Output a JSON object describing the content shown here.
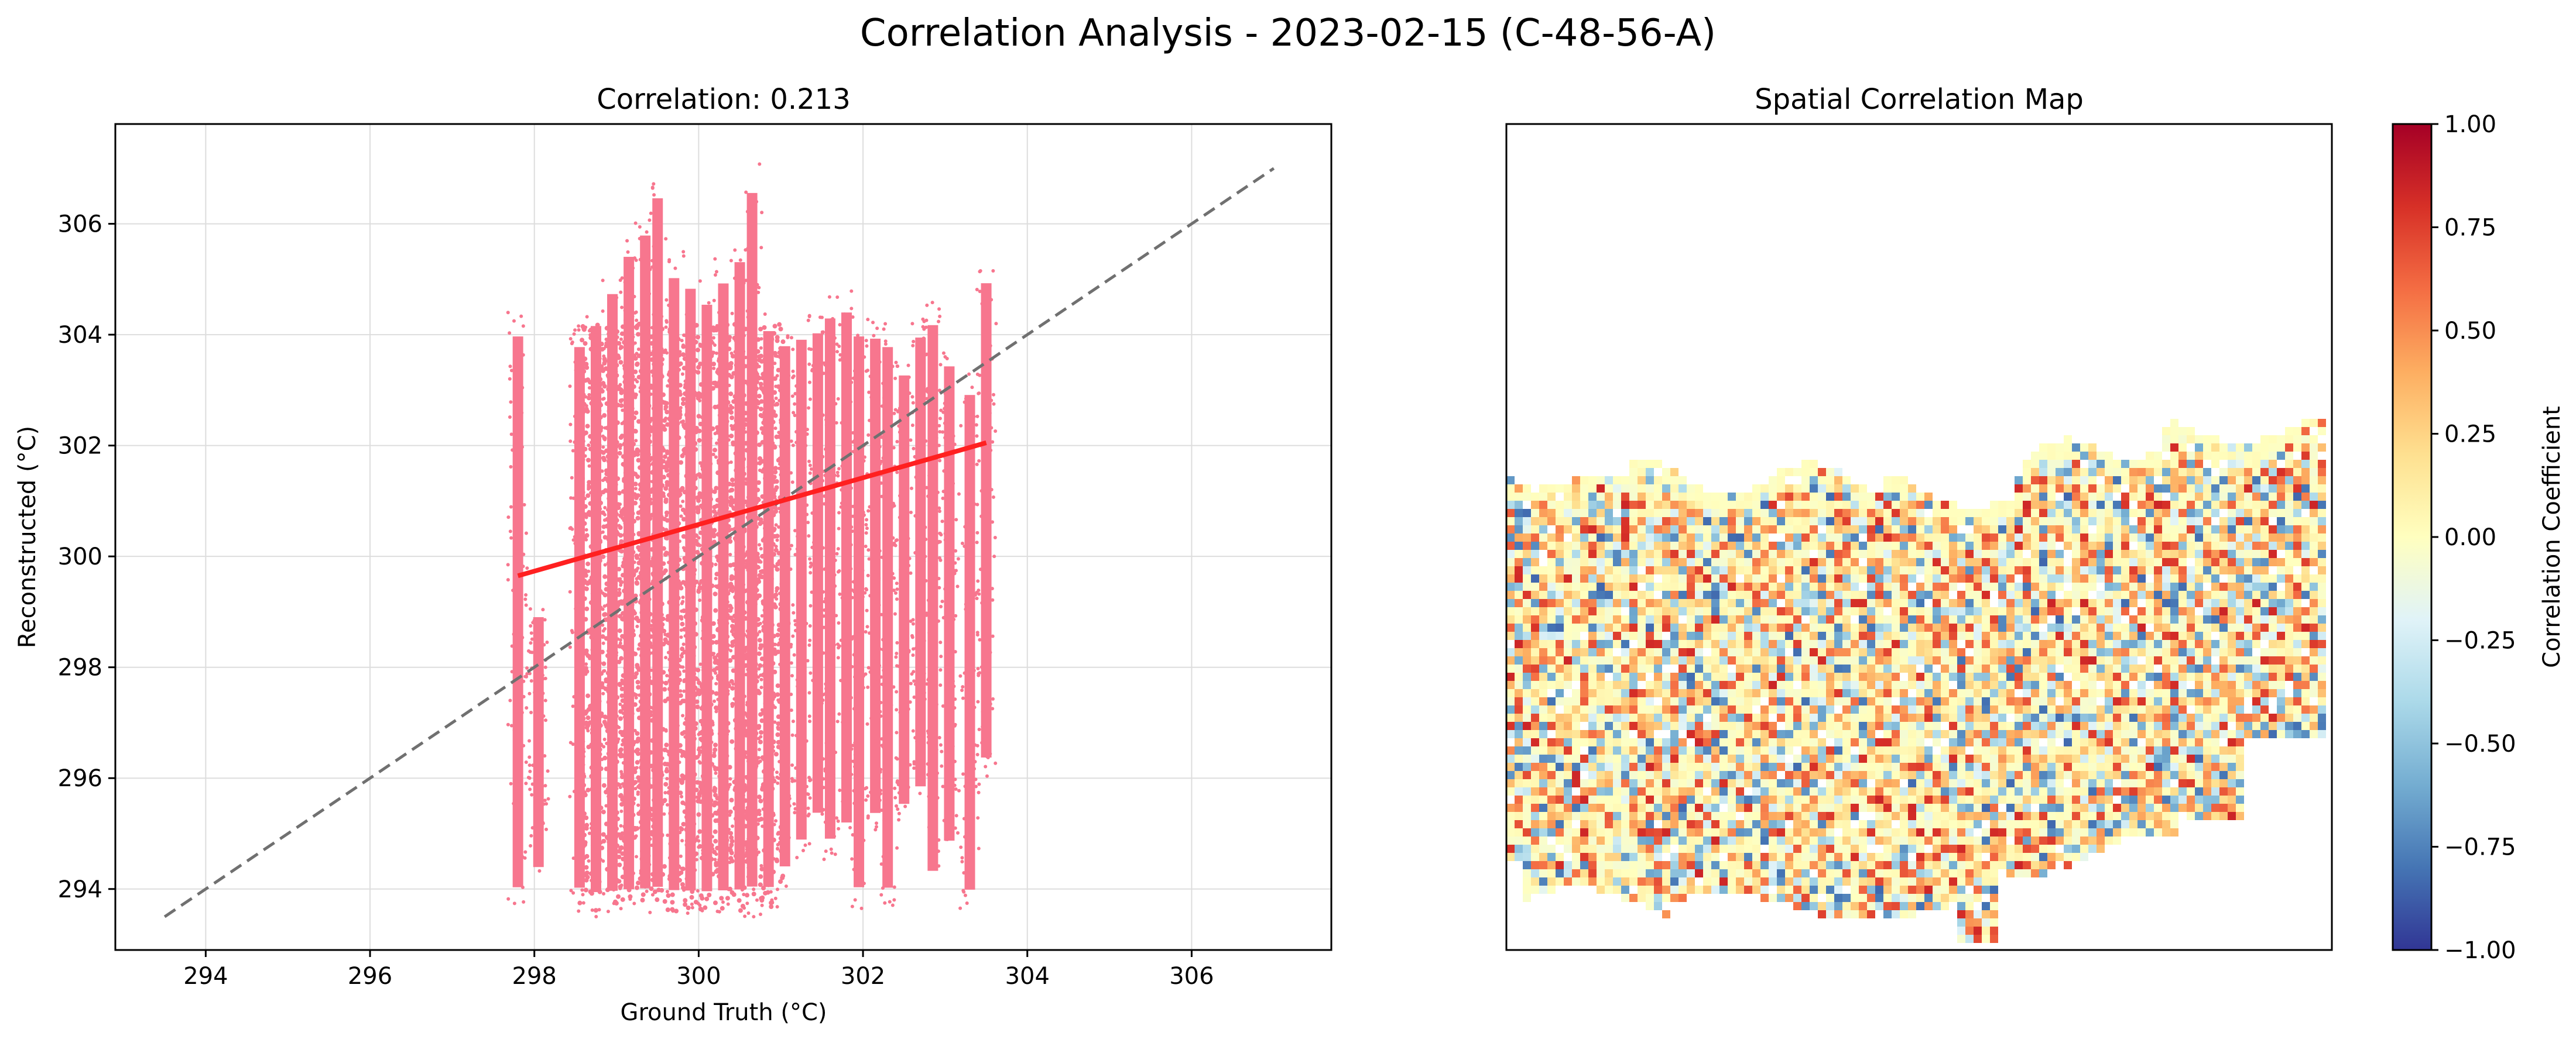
{
  "figure_title": "Correlation Analysis - 2023-02-15 (C-48-56-A)",
  "colors": {
    "scatter": "#f7768e",
    "fit_line": "#ff2020",
    "identity_line": "#707070",
    "grid": "#dddddd"
  },
  "chart_data": [
    {
      "type": "scatter",
      "title": "Correlation: 0.213",
      "xlabel": "Ground Truth (°C)",
      "ylabel": "Reconstructed (°C)",
      "xlim": [
        292.9,
        307.7
      ],
      "ylim": [
        292.9,
        307.8
      ],
      "xticks": [
        "294",
        "296",
        "298",
        "300",
        "302",
        "304",
        "306"
      ],
      "yticks": [
        "294",
        "296",
        "298",
        "300",
        "302",
        "304",
        "306"
      ],
      "grid": true,
      "series": [
        {
          "kind": "points",
          "columns": [
            {
              "x": 297.8,
              "ymin": 293.6,
              "ymax": 304.4
            },
            {
              "x": 298.05,
              "ymin": 294.2,
              "ymax": 299.1
            },
            {
              "x": 298.55,
              "ymin": 293.6,
              "ymax": 304.2
            },
            {
              "x": 298.75,
              "ymin": 293.5,
              "ymax": 304.6
            },
            {
              "x": 298.95,
              "ymin": 293.5,
              "ymax": 305.2
            },
            {
              "x": 299.15,
              "ymin": 293.5,
              "ymax": 305.9
            },
            {
              "x": 299.35,
              "ymin": 293.5,
              "ymax": 306.3
            },
            {
              "x": 299.5,
              "ymin": 293.5,
              "ymax": 307.0
            },
            {
              "x": 299.7,
              "ymin": 293.5,
              "ymax": 305.5
            },
            {
              "x": 299.9,
              "ymin": 293.5,
              "ymax": 305.3
            },
            {
              "x": 300.1,
              "ymin": 293.5,
              "ymax": 305.0
            },
            {
              "x": 300.3,
              "ymin": 293.5,
              "ymax": 305.4
            },
            {
              "x": 300.5,
              "ymin": 293.5,
              "ymax": 305.8
            },
            {
              "x": 300.65,
              "ymin": 293.5,
              "ymax": 307.1
            },
            {
              "x": 300.85,
              "ymin": 293.6,
              "ymax": 304.5
            },
            {
              "x": 301.05,
              "ymin": 294.0,
              "ymax": 304.2
            },
            {
              "x": 301.25,
              "ymin": 294.5,
              "ymax": 304.3
            },
            {
              "x": 301.45,
              "ymin": 295.0,
              "ymax": 304.4
            },
            {
              "x": 301.6,
              "ymin": 294.5,
              "ymax": 304.7
            },
            {
              "x": 301.8,
              "ymin": 294.8,
              "ymax": 304.8
            },
            {
              "x": 301.95,
              "ymin": 293.6,
              "ymax": 304.4
            },
            {
              "x": 302.15,
              "ymin": 295.0,
              "ymax": 304.3
            },
            {
              "x": 302.3,
              "ymin": 293.6,
              "ymax": 304.2
            },
            {
              "x": 302.5,
              "ymin": 295.2,
              "ymax": 303.6
            },
            {
              "x": 302.7,
              "ymin": 295.5,
              "ymax": 304.3
            },
            {
              "x": 302.85,
              "ymin": 293.9,
              "ymax": 304.6
            },
            {
              "x": 303.05,
              "ymin": 294.5,
              "ymax": 303.8
            },
            {
              "x": 303.3,
              "ymin": 293.6,
              "ymax": 303.3
            },
            {
              "x": 303.5,
              "ymin": 296.0,
              "ymax": 305.3
            }
          ]
        },
        {
          "kind": "fit",
          "x": [
            297.8,
            303.5
          ],
          "y": [
            299.65,
            302.05
          ]
        },
        {
          "kind": "identity",
          "x": [
            293.5,
            307.0
          ],
          "y": [
            293.5,
            307.0
          ]
        }
      ]
    },
    {
      "type": "heatmap",
      "title": "Spatial Correlation Map",
      "colorbar": {
        "label": "Correlation Coefficient",
        "range": [
          -1.0,
          1.0
        ],
        "ticks": [
          "1.00",
          "0.75",
          "0.50",
          "0.25",
          "0.00",
          "−0.25",
          "−0.50",
          "−0.75",
          "−1.00"
        ],
        "colormap": "RdYlBu_r"
      }
    }
  ]
}
